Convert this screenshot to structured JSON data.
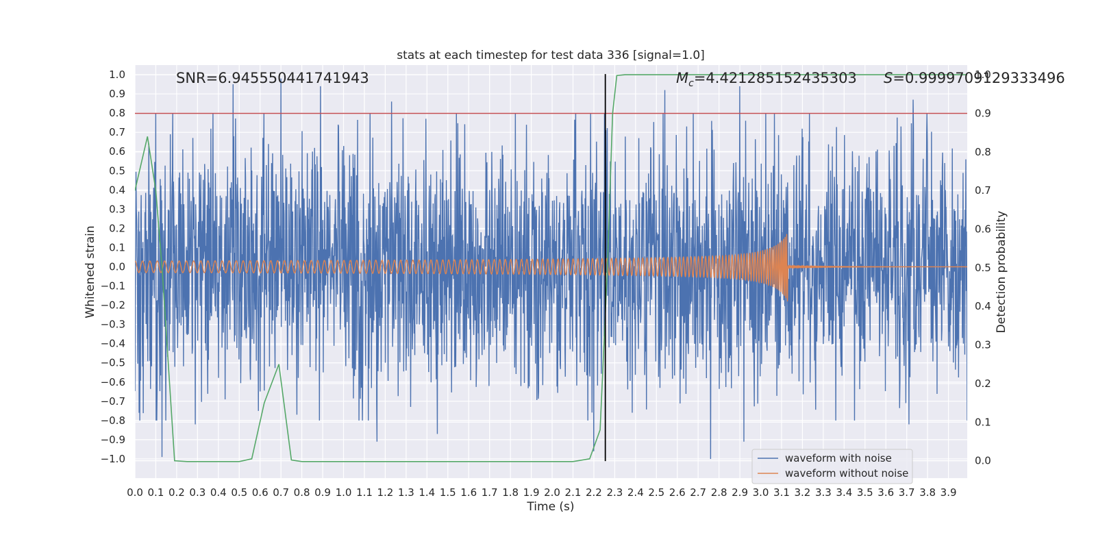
{
  "chart_data": {
    "type": "line",
    "title": "stats at each timestep for test data 336 [signal=1.0]",
    "xlabel": "Time (s)",
    "ylabel": "Whitened strain",
    "y2label": "Detection probability",
    "xlim": [
      0.0,
      3.99
    ],
    "ylim": [
      -1.1,
      1.05
    ],
    "y2lim": [
      -0.045,
      1.025
    ],
    "x_ticks": [
      "0.0",
      "0.1",
      "0.2",
      "0.3",
      "0.4",
      "0.5",
      "0.6",
      "0.7",
      "0.8",
      "0.9",
      "1.0",
      "1.1",
      "1.2",
      "1.3",
      "1.4",
      "1.5",
      "1.6",
      "1.7",
      "1.8",
      "1.9",
      "2.0",
      "2.1",
      "2.2",
      "2.3",
      "2.4",
      "2.5",
      "2.6",
      "2.7",
      "2.8",
      "2.9",
      "3.0",
      "3.1",
      "3.2",
      "3.3",
      "3.4",
      "3.5",
      "3.6",
      "3.7",
      "3.8",
      "3.9"
    ],
    "y_ticks": [
      "1.0",
      "0.9",
      "0.8",
      "0.7",
      "0.6",
      "0.5",
      "0.4",
      "0.3",
      "0.2",
      "0.1",
      "0.0",
      "−0.1",
      "−0.2",
      "−0.3",
      "−0.4",
      "−0.5",
      "−0.6",
      "−0.7",
      "−0.8",
      "−0.9",
      "−1.0"
    ],
    "y2_ticks": [
      "1.0",
      "0.9",
      "0.8",
      "0.7",
      "0.6",
      "0.5",
      "0.4",
      "0.3",
      "0.2",
      "0.1",
      "0.0"
    ],
    "grid": true,
    "annotations": {
      "snr": "SNR=6.945550441741943",
      "mc_symbol": "M",
      "mc_sub": "c",
      "mc_value": "=4.421285152435303",
      "s_symbol": "S",
      "s_value": "=0.9999709129333496"
    },
    "threshold_y2": 0.9,
    "event_time": 2.255,
    "merger_time": 3.13,
    "series": [
      {
        "name": "waveform with noise",
        "color": "#4c72b0",
        "description_type": "noise",
        "peaks": [
          {
            "x": 0.02,
            "y": -0.76
          },
          {
            "x": 0.13,
            "y": -0.99
          },
          {
            "x": 0.29,
            "y": -0.82
          },
          {
            "x": 0.47,
            "y": 0.95
          },
          {
            "x": 0.7,
            "y": 0.98
          },
          {
            "x": 0.89,
            "y": 0.94
          },
          {
            "x": 1.16,
            "y": -0.91
          },
          {
            "x": 1.23,
            "y": 0.86
          },
          {
            "x": 1.45,
            "y": -0.87
          },
          {
            "x": 2.2,
            "y": -0.96
          },
          {
            "x": 2.54,
            "y": 0.92
          },
          {
            "x": 2.76,
            "y": -1.0
          },
          {
            "x": 2.9,
            "y": 0.94
          },
          {
            "x": 2.92,
            "y": -0.91
          },
          {
            "x": 3.73,
            "y": 0.87
          },
          {
            "x": 3.71,
            "y": -0.82
          }
        ]
      },
      {
        "name": "waveform without noise",
        "color": "#dd8452",
        "description_type": "chirp",
        "amplitude_start": 0.03,
        "amplitude_peak": 0.2
      },
      {
        "name": "",
        "color": "#55a868",
        "axis": "y2",
        "x": [
          0.0,
          0.06,
          0.1,
          0.13,
          0.19,
          0.25,
          0.5,
          0.56,
          0.62,
          0.69,
          0.75,
          0.8,
          2.1,
          2.18,
          2.23,
          2.265,
          2.29,
          2.31,
          2.35,
          3.99
        ],
        "y": [
          0.7,
          0.84,
          0.7,
          0.5,
          0.0,
          -0.002,
          -0.002,
          0.005,
          0.15,
          0.25,
          0.002,
          -0.002,
          -0.002,
          0.005,
          0.08,
          0.5,
          0.9,
          0.998,
          1.0,
          1.0
        ]
      }
    ],
    "legend": {
      "position": "lower-right",
      "entries": [
        "waveform with noise",
        "waveform without noise"
      ]
    }
  }
}
